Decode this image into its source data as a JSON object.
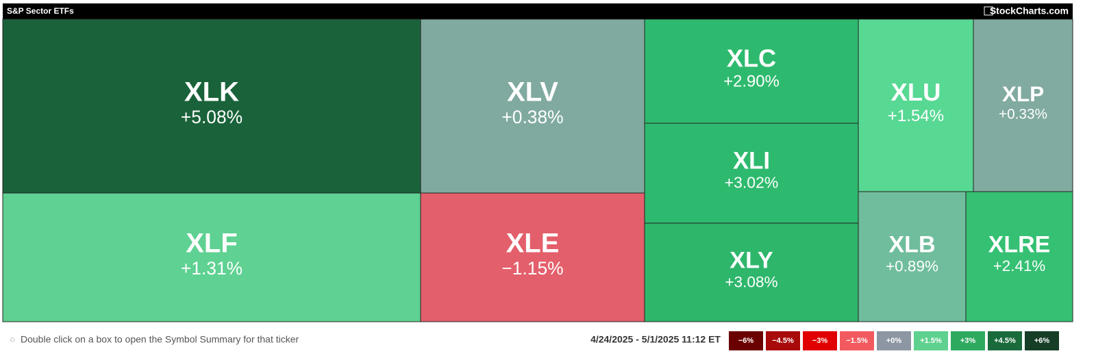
{
  "chart_data": {
    "type": "treemap",
    "title": "S&P Sector ETFs",
    "brand": "StockCharts.com",
    "categories": [
      "XLK",
      "XLF",
      "XLV",
      "XLE",
      "XLC",
      "XLI",
      "XLY",
      "XLU",
      "XLP",
      "XLB",
      "XLRE"
    ],
    "values": [
      5.08,
      1.31,
      0.38,
      -1.15,
      2.9,
      3.02,
      3.08,
      1.54,
      0.33,
      0.89,
      2.41
    ],
    "value_labels": [
      "+5.08%",
      "+1.31%",
      "+0.38%",
      "−1.15%",
      "+2.90%",
      "+3.02%",
      "+3.08%",
      "+1.54%",
      "+0.33%",
      "+0.89%",
      "+2.41%"
    ],
    "colors": [
      "#1a633a",
      "#5fd192",
      "#80aaa0",
      "#e35f6b",
      "#2eba6e",
      "#2eba6e",
      "#2eb66b",
      "#57d893",
      "#81aaa0",
      "#6fbd9c",
      "#35c073"
    ],
    "hint": "Double click on a box to open the Symbol Summary for that ticker",
    "date_range": "4/24/2025 - 5/1/2025 11:12 ET",
    "legend": [
      {
        "value": -6,
        "label": "−6%",
        "color": "#6b0000"
      },
      {
        "value": -4.5,
        "label": "−4.5%",
        "color": "#a80a0a"
      },
      {
        "value": -3,
        "label": "−3%",
        "color": "#e00000"
      },
      {
        "value": -1.5,
        "label": "−1.5%",
        "color": "#f25a5f"
      },
      {
        "value": 0,
        "label": "+0%",
        "color": "#8c97a3"
      },
      {
        "value": 1.5,
        "label": "+1.5%",
        "color": "#5ed18f"
      },
      {
        "value": 3,
        "label": "+3%",
        "color": "#2eaa5f"
      },
      {
        "value": 4.5,
        "label": "+4.5%",
        "color": "#1a6b3c"
      },
      {
        "value": 6,
        "label": "+6%",
        "color": "#163d26"
      }
    ]
  }
}
